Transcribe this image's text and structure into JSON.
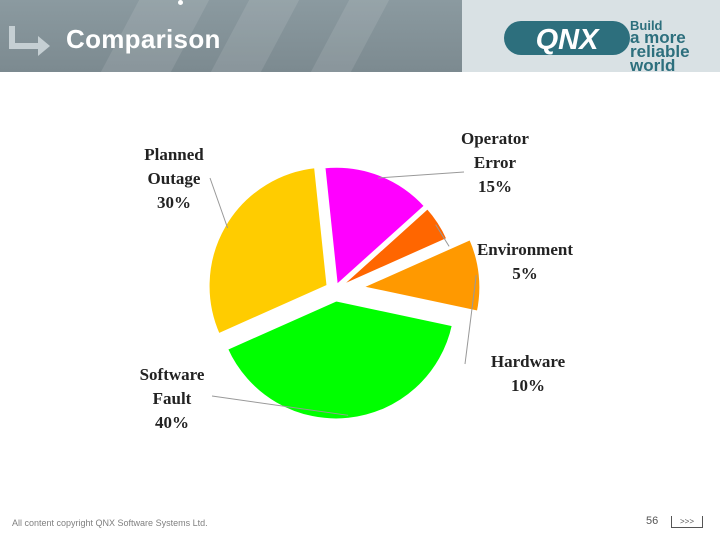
{
  "slide": {
    "title": "Comparison",
    "logo": {
      "brand": "QNX",
      "tagline": [
        "Build",
        "a more",
        "reliable",
        "world"
      ]
    },
    "footer": {
      "copyright": "All content copyright QNX Software Systems Ltd.",
      "page_number": "56",
      "nav": ">>>"
    }
  },
  "chart_data": {
    "type": "pie",
    "title": "",
    "slices": [
      {
        "label_lines": [
          "Planned",
          "Outage",
          "30%"
        ],
        "name": "Planned Outage",
        "value": 30,
        "color": "#ffcc00"
      },
      {
        "label_lines": [
          "Operator",
          "Error",
          "15%"
        ],
        "name": "Operator Error",
        "value": 15,
        "color": "#ff00ff"
      },
      {
        "label_lines": [
          "Environment",
          "5%"
        ],
        "name": "Environment",
        "value": 5,
        "color": "#ff6600"
      },
      {
        "label_lines": [
          "Hardware",
          "10%"
        ],
        "name": "Hardware",
        "value": 10,
        "color": "#ff9900"
      },
      {
        "label_lines": [
          "Software",
          "Fault",
          "40%"
        ],
        "name": "Software Fault",
        "value": 40,
        "color": "#00ff00"
      }
    ]
  }
}
